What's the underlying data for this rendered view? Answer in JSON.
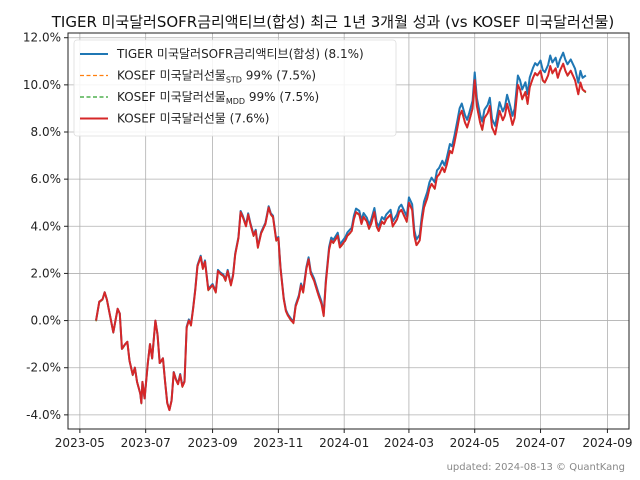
{
  "chart_data": {
    "type": "line",
    "title": "TIGER 미국달러SOFR금리액티브(합성) 최근 1년 3개월 성과 (vs KOSEF 미국달러선물)",
    "xlabel": "",
    "ylabel": "",
    "ylim": [
      -4.6,
      12.2
    ],
    "xlim": [
      "2023-04-20",
      "2024-09-21"
    ],
    "grid": true,
    "legend_position": "top-left",
    "x_ticks": [
      {
        "date": "2023-05-01",
        "label": "2023-05"
      },
      {
        "date": "2023-07-01",
        "label": "2023-07"
      },
      {
        "date": "2023-09-01",
        "label": "2023-09"
      },
      {
        "date": "2023-11-01",
        "label": "2023-11"
      },
      {
        "date": "2024-01-01",
        "label": "2024-01"
      },
      {
        "date": "2024-03-01",
        "label": "2024-03"
      },
      {
        "date": "2024-05-01",
        "label": "2024-05"
      },
      {
        "date": "2024-07-01",
        "label": "2024-07"
      },
      {
        "date": "2024-09-01",
        "label": "2024-09"
      }
    ],
    "y_ticks": [
      {
        "value": -4,
        "label": "-4.0%"
      },
      {
        "value": -2,
        "label": "-2.0%"
      },
      {
        "value": 0,
        "label": "0.0%"
      },
      {
        "value": 2,
        "label": "2.0%"
      },
      {
        "value": 4,
        "label": "4.0%"
      },
      {
        "value": 6,
        "label": "6.0%"
      },
      {
        "value": 8,
        "label": "8.0%"
      },
      {
        "value": 10,
        "label": "10.0%"
      },
      {
        "value": 12,
        "label": "12.0%"
      }
    ],
    "series": [
      {
        "name_main": "TIGER 미국달러SOFR금리액티브(합성) (8.1%)",
        "name_sub": "",
        "name_tail": "",
        "color": "#1f77b4",
        "style": "solid",
        "width": 2.0
      },
      {
        "name_main": "KOSEF 미국달러선물",
        "name_sub": "STD",
        "name_tail": " 99% (7.5%)",
        "color": "#ff7f0e",
        "style": "dashed",
        "width": 1.2
      },
      {
        "name_main": "KOSEF 미국달러선물",
        "name_sub": "MDD",
        "name_tail": " 99% (7.5%)",
        "color": "#2ca02c",
        "style": "dashed",
        "width": 1.2
      },
      {
        "name_main": "KOSEF 미국달러선물 (7.6%)",
        "name_sub": "",
        "name_tail": "",
        "color": "#d62728",
        "style": "solid",
        "width": 2.0
      }
    ],
    "shared_points": [
      [
        "2023-05-16",
        0.0
      ],
      [
        "2023-05-19",
        0.8
      ],
      [
        "2023-05-22",
        0.9
      ],
      [
        "2023-05-24",
        1.2
      ],
      [
        "2023-05-26",
        0.9
      ],
      [
        "2023-05-29",
        0.2
      ],
      [
        "2023-06-01",
        -0.5
      ],
      [
        "2023-06-05",
        0.5
      ],
      [
        "2023-06-07",
        0.3
      ],
      [
        "2023-06-09",
        -1.2
      ],
      [
        "2023-06-12",
        -1.0
      ],
      [
        "2023-06-14",
        -0.9
      ],
      [
        "2023-06-16",
        -1.7
      ],
      [
        "2023-06-19",
        -2.3
      ],
      [
        "2023-06-21",
        -2.0
      ],
      [
        "2023-06-23",
        -2.6
      ],
      [
        "2023-06-26",
        -3.1
      ],
      [
        "2023-06-27",
        -3.5
      ],
      [
        "2023-06-28",
        -2.6
      ],
      [
        "2023-06-30",
        -3.3
      ],
      [
        "2023-07-03",
        -1.8
      ],
      [
        "2023-07-05",
        -1.0
      ],
      [
        "2023-07-07",
        -1.6
      ],
      [
        "2023-07-10",
        0.0
      ],
      [
        "2023-07-12",
        -0.6
      ],
      [
        "2023-07-14",
        -1.8
      ],
      [
        "2023-07-17",
        -1.6
      ],
      [
        "2023-07-19",
        -2.6
      ],
      [
        "2023-07-21",
        -3.5
      ],
      [
        "2023-07-23",
        -3.8
      ],
      [
        "2023-07-25",
        -3.4
      ],
      [
        "2023-07-27",
        -2.2
      ],
      [
        "2023-07-29",
        -2.5
      ],
      [
        "2023-07-31",
        -2.7
      ],
      [
        "2023-08-02",
        -2.3
      ],
      [
        "2023-08-04",
        -2.8
      ],
      [
        "2023-08-06",
        -2.6
      ],
      [
        "2023-08-08",
        -0.3
      ],
      [
        "2023-08-10",
        0.0
      ],
      [
        "2023-08-12",
        -0.2
      ],
      [
        "2023-08-14",
        0.5
      ],
      [
        "2023-08-16",
        1.3
      ],
      [
        "2023-08-18",
        2.3
      ],
      [
        "2023-08-21",
        2.7
      ],
      [
        "2023-08-23",
        2.2
      ],
      [
        "2023-08-25",
        2.5
      ],
      [
        "2023-08-28",
        1.3
      ],
      [
        "2023-08-30",
        1.4
      ],
      [
        "2023-09-01",
        1.5
      ],
      [
        "2023-09-04",
        1.2
      ],
      [
        "2023-09-06",
        2.1
      ],
      [
        "2023-09-08",
        2.0
      ],
      [
        "2023-09-11",
        1.9
      ],
      [
        "2023-09-13",
        1.7
      ],
      [
        "2023-09-15",
        2.1
      ],
      [
        "2023-09-18",
        1.5
      ],
      [
        "2023-09-20",
        1.9
      ],
      [
        "2023-09-22",
        2.8
      ],
      [
        "2023-09-25",
        3.5
      ],
      [
        "2023-09-27",
        4.6
      ],
      [
        "2023-09-29",
        4.4
      ],
      [
        "2023-10-02",
        4.0
      ],
      [
        "2023-10-04",
        4.5
      ],
      [
        "2023-10-06",
        4.1
      ],
      [
        "2023-10-09",
        3.6
      ],
      [
        "2023-10-11",
        3.8
      ],
      [
        "2023-10-13",
        3.1
      ],
      [
        "2023-10-16",
        3.7
      ],
      [
        "2023-10-18",
        3.9
      ],
      [
        "2023-10-20",
        4.1
      ],
      [
        "2023-10-23",
        4.8
      ],
      [
        "2023-10-25",
        4.5
      ],
      [
        "2023-10-27",
        4.4
      ],
      [
        "2023-10-30",
        3.4
      ],
      [
        "2023-11-01",
        3.5
      ],
      [
        "2023-11-03",
        2.2
      ],
      [
        "2023-11-06",
        0.9
      ],
      [
        "2023-11-08",
        0.4
      ],
      [
        "2023-11-10",
        0.2
      ],
      [
        "2023-11-13",
        0.0
      ],
      [
        "2023-11-15",
        -0.1
      ],
      [
        "2023-11-17",
        0.6
      ],
      [
        "2023-11-20",
        1.0
      ],
      [
        "2023-11-22",
        1.5
      ],
      [
        "2023-11-24",
        1.2
      ],
      [
        "2023-11-27",
        2.2
      ],
      [
        "2023-11-29",
        2.6
      ],
      [
        "2023-12-01",
        2.0
      ],
      [
        "2023-12-04",
        1.7
      ],
      [
        "2023-12-06",
        1.4
      ],
      [
        "2023-12-08",
        1.1
      ],
      [
        "2023-12-11",
        0.7
      ],
      [
        "2023-12-13",
        0.2
      ],
      [
        "2023-12-15",
        1.6
      ],
      [
        "2023-12-18",
        3.0
      ],
      [
        "2023-12-20",
        3.4
      ],
      [
        "2023-12-22",
        3.3
      ],
      [
        "2023-12-26",
        3.6
      ],
      [
        "2023-12-28",
        3.1
      ],
      [
        "2024-01-02",
        3.4
      ],
      [
        "2024-01-04",
        3.6
      ],
      [
        "2024-01-08",
        3.8
      ],
      [
        "2024-01-10",
        4.3
      ],
      [
        "2024-01-12",
        4.6
      ],
      [
        "2024-01-15",
        4.5
      ],
      [
        "2024-01-17",
        4.1
      ],
      [
        "2024-01-19",
        4.4
      ],
      [
        "2024-01-22",
        4.2
      ],
      [
        "2024-01-24",
        3.9
      ],
      [
        "2024-01-26",
        4.1
      ],
      [
        "2024-01-29",
        4.6
      ],
      [
        "2024-01-31",
        4.0
      ],
      [
        "2024-02-02",
        3.8
      ],
      [
        "2024-02-05",
        4.2
      ],
      [
        "2024-02-07",
        4.1
      ],
      [
        "2024-02-09",
        4.3
      ],
      [
        "2024-02-13",
        4.5
      ],
      [
        "2024-02-15",
        4.0
      ],
      [
        "2024-02-19",
        4.3
      ],
      [
        "2024-02-21",
        4.6
      ],
      [
        "2024-02-23",
        4.7
      ],
      [
        "2024-02-26",
        4.4
      ],
      [
        "2024-02-28",
        4.2
      ],
      [
        "2024-03-01",
        5.0
      ],
      [
        "2024-03-04",
        4.7
      ],
      [
        "2024-03-06",
        3.6
      ],
      [
        "2024-03-08",
        3.2
      ],
      [
        "2024-03-11",
        3.4
      ],
      [
        "2024-03-13",
        4.2
      ],
      [
        "2024-03-15",
        4.8
      ],
      [
        "2024-03-18",
        5.2
      ],
      [
        "2024-03-20",
        5.6
      ],
      [
        "2024-03-22",
        5.8
      ],
      [
        "2024-03-25",
        5.6
      ],
      [
        "2024-03-27",
        6.1
      ],
      [
        "2024-03-29",
        6.2
      ],
      [
        "2024-04-01",
        6.5
      ],
      [
        "2024-04-03",
        6.3
      ],
      [
        "2024-04-05",
        6.6
      ],
      [
        "2024-04-08",
        7.2
      ],
      [
        "2024-04-10",
        7.1
      ],
      [
        "2024-04-12",
        7.5
      ],
      [
        "2024-04-15",
        8.2
      ],
      [
        "2024-04-17",
        8.7
      ],
      [
        "2024-04-19",
        8.9
      ],
      [
        "2024-04-22",
        8.4
      ],
      [
        "2024-04-24",
        8.2
      ],
      [
        "2024-04-26",
        8.5
      ],
      [
        "2024-04-29",
        9.0
      ],
      [
        "2024-05-01",
        10.2
      ],
      [
        "2024-05-03",
        9.1
      ],
      [
        "2024-05-06",
        8.4
      ],
      [
        "2024-05-08",
        8.1
      ],
      [
        "2024-05-10",
        8.6
      ],
      [
        "2024-05-13",
        8.8
      ],
      [
        "2024-05-15",
        9.1
      ],
      [
        "2024-05-17",
        8.2
      ],
      [
        "2024-05-20",
        7.9
      ],
      [
        "2024-05-22",
        8.4
      ],
      [
        "2024-05-24",
        8.9
      ],
      [
        "2024-05-27",
        8.5
      ],
      [
        "2024-05-29",
        8.7
      ],
      [
        "2024-05-31",
        9.2
      ],
      [
        "2024-06-03",
        8.7
      ],
      [
        "2024-06-05",
        8.3
      ],
      [
        "2024-06-07",
        8.6
      ],
      [
        "2024-06-10",
        10.0
      ],
      [
        "2024-06-12",
        9.8
      ],
      [
        "2024-06-14",
        9.4
      ],
      [
        "2024-06-17",
        9.7
      ],
      [
        "2024-06-19",
        9.2
      ],
      [
        "2024-06-21",
        9.9
      ],
      [
        "2024-06-24",
        10.3
      ],
      [
        "2024-06-26",
        10.5
      ],
      [
        "2024-06-28",
        10.4
      ],
      [
        "2024-07-01",
        10.6
      ],
      [
        "2024-07-03",
        10.2
      ],
      [
        "2024-07-05",
        10.1
      ],
      [
        "2024-07-08",
        10.4
      ],
      [
        "2024-07-10",
        10.8
      ],
      [
        "2024-07-12",
        10.5
      ],
      [
        "2024-07-15",
        10.7
      ],
      [
        "2024-07-17",
        10.3
      ],
      [
        "2024-07-19",
        10.6
      ],
      [
        "2024-07-22",
        10.9
      ],
      [
        "2024-07-24",
        10.6
      ],
      [
        "2024-07-26",
        10.4
      ],
      [
        "2024-07-29",
        10.6
      ],
      [
        "2024-07-31",
        10.4
      ],
      [
        "2024-08-02",
        10.2
      ],
      [
        "2024-08-05",
        9.6
      ],
      [
        "2024-08-07",
        10.1
      ],
      [
        "2024-08-09",
        9.8
      ],
      [
        "2024-08-12",
        9.7
      ]
    ],
    "tiger_offset": [
      0,
      0,
      0,
      0.05,
      0.05,
      0.05,
      0.05,
      0.1,
      0.15,
      0.2,
      0.25,
      0.3,
      0.35,
      0.4,
      0.45,
      0.5
    ],
    "tiger_final": 10.4
  },
  "footer": "updated: 2024-08-13 © QuantKang"
}
